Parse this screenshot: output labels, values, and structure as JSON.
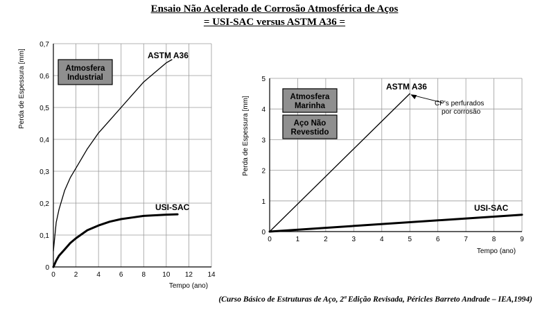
{
  "header": {
    "title_line1": "Ensaio Não Acelerado de Corrosão Atmosférica de Aços",
    "title_line2": "= USI-SAC versus ASTM A36 ="
  },
  "caption": "(Curso Básico de Estruturas de Aço, 2ª Edição Revisada, Péricles Barreto Andrade – IEA,1994)",
  "chart_data": [
    {
      "type": "line",
      "title": "",
      "xlabel": "Tempo (ano)",
      "ylabel": "Perda de Espessura [mm]",
      "xlim": [
        0,
        14
      ],
      "ylim": [
        0,
        0.7
      ],
      "xticks": [
        0,
        2,
        4,
        6,
        8,
        10,
        12,
        14
      ],
      "yticks": [
        0.1,
        0.2,
        0.3,
        0.4,
        0.5,
        0.6,
        0.7
      ],
      "ytick_labels": [
        "0,1",
        "0,2",
        "0,3",
        "0,4",
        "0,5",
        "0,6",
        "0,7"
      ],
      "grid": true,
      "annotations": [
        "Atmosfera Industrial"
      ],
      "series": [
        {
          "name": "ASTM A36",
          "x": [
            0,
            0.25,
            0.5,
            1,
            1.5,
            2,
            3,
            4,
            5,
            6,
            7,
            8,
            9,
            10,
            10.5
          ],
          "y": [
            0.05,
            0.14,
            0.18,
            0.24,
            0.28,
            0.31,
            0.37,
            0.42,
            0.46,
            0.5,
            0.54,
            0.58,
            0.61,
            0.64,
            0.65
          ]
        },
        {
          "name": "USI-SAC",
          "x": [
            0,
            0.25,
            0.5,
            1,
            1.5,
            2,
            3,
            4,
            5,
            6,
            7,
            8,
            9,
            10,
            11
          ],
          "y": [
            0,
            0.02,
            0.035,
            0.055,
            0.075,
            0.09,
            0.115,
            0.13,
            0.142,
            0.15,
            0.155,
            0.16,
            0.162,
            0.164,
            0.165
          ]
        }
      ]
    },
    {
      "type": "line",
      "title": "",
      "xlabel": "Tempo (ano)",
      "ylabel": "Perda de Espessura [mm]",
      "xlim": [
        0,
        9
      ],
      "ylim": [
        0,
        5
      ],
      "xticks": [
        0,
        1,
        2,
        3,
        4,
        5,
        6,
        7,
        8,
        9
      ],
      "yticks": [
        1,
        2,
        3,
        4,
        5
      ],
      "grid": true,
      "annotations": [
        "Atmosfera Marinha",
        "Aço Não Revestido",
        "CP's perfurados por corrosão"
      ],
      "series": [
        {
          "name": "ASTM A36",
          "x": [
            0,
            5
          ],
          "y": [
            0,
            4.5
          ]
        },
        {
          "name": "USI-SAC",
          "x": [
            0,
            9
          ],
          "y": [
            0,
            0.55
          ]
        }
      ]
    }
  ],
  "labels": {
    "c1_box": [
      "Atmosfera",
      "Industrial"
    ],
    "c2_box1": [
      "Atmosfera",
      "Marinha"
    ],
    "c2_box2": [
      "Aço Não",
      "Revestido"
    ],
    "c2_note": [
      "CP's perfurados",
      "por corrosão"
    ]
  }
}
